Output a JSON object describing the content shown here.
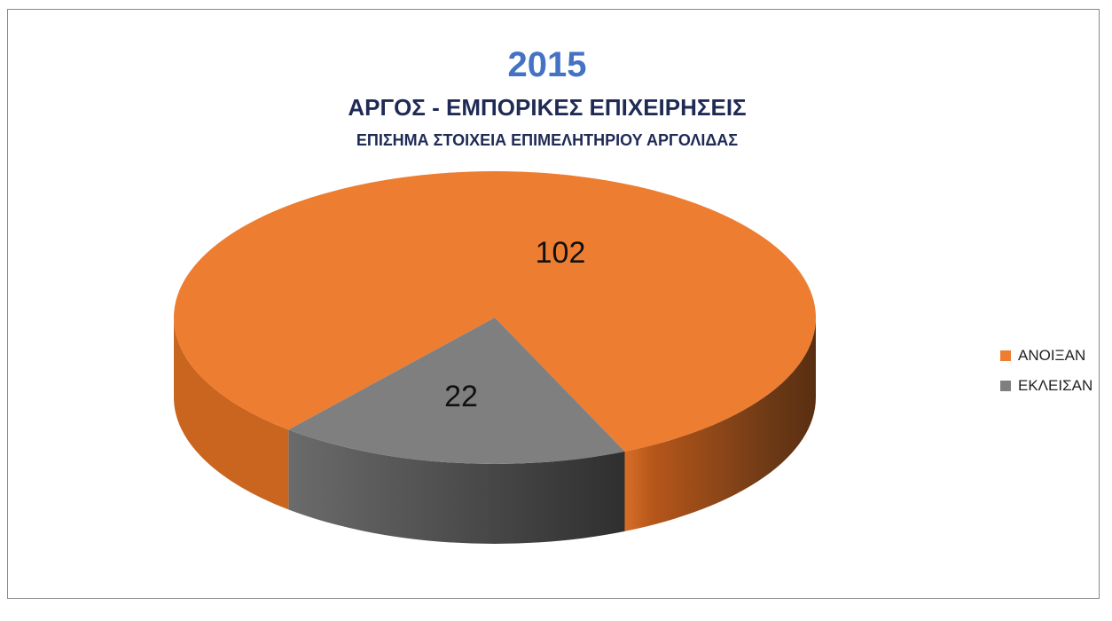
{
  "chart_data": {
    "type": "pie",
    "title": "2015",
    "subtitle": "ΑΡΓΟΣ - ΕΜΠΟΡΙΚΕΣ ΕΠΙΧΕΙΡΗΣΕΙΣ",
    "subtitle2": "ΕΠΙΣΗΜΑ ΣΤΟΙΧΕΙΑ ΕΠΙΜΕΛΗΤΗΡΙΟΥ ΑΡΓΟΛΙΔΑΣ",
    "categories": [
      "ΑΝΟΙΞΑΝ",
      "ΕΚΛΕΙΣΑΝ"
    ],
    "values": [
      102,
      22
    ],
    "colors": [
      "#ed7d31",
      "#7f7f7f"
    ],
    "legend_position": "right",
    "style": "3d"
  }
}
